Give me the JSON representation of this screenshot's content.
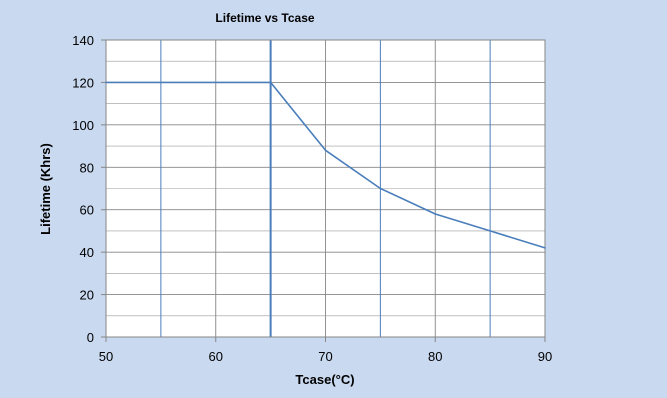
{
  "chart_data": {
    "type": "line",
    "title": "Lifetime vs Tcase",
    "xlabel": "Tcase(°C)",
    "ylabel": "Lifetime (Khrs)",
    "xlim": [
      50,
      90
    ],
    "ylim": [
      0,
      140
    ],
    "x_ticks": [
      50,
      60,
      70,
      80,
      90
    ],
    "y_ticks": [
      0,
      20,
      40,
      60,
      80,
      100,
      120,
      140
    ],
    "x_minor_grid": [
      55,
      65,
      75,
      85
    ],
    "y_minor_grid": [
      10,
      30,
      50,
      70,
      90,
      110,
      130
    ],
    "vertical_marker_x": 65,
    "grid": true,
    "legend": "none",
    "series": [
      {
        "x": [
          50,
          65,
          70,
          75,
          80,
          85,
          90
        ],
        "y": [
          120,
          120,
          88,
          70,
          58,
          50,
          42
        ]
      }
    ],
    "colors": {
      "line": "#4a7ebb",
      "minor_vertical_grid": "#4a7ebb",
      "major_grid": "#868686",
      "minor_horizontal_grid": "#9b9b9b",
      "plot_background": "#ffffff",
      "frame_background": "#c9d9f0"
    }
  }
}
